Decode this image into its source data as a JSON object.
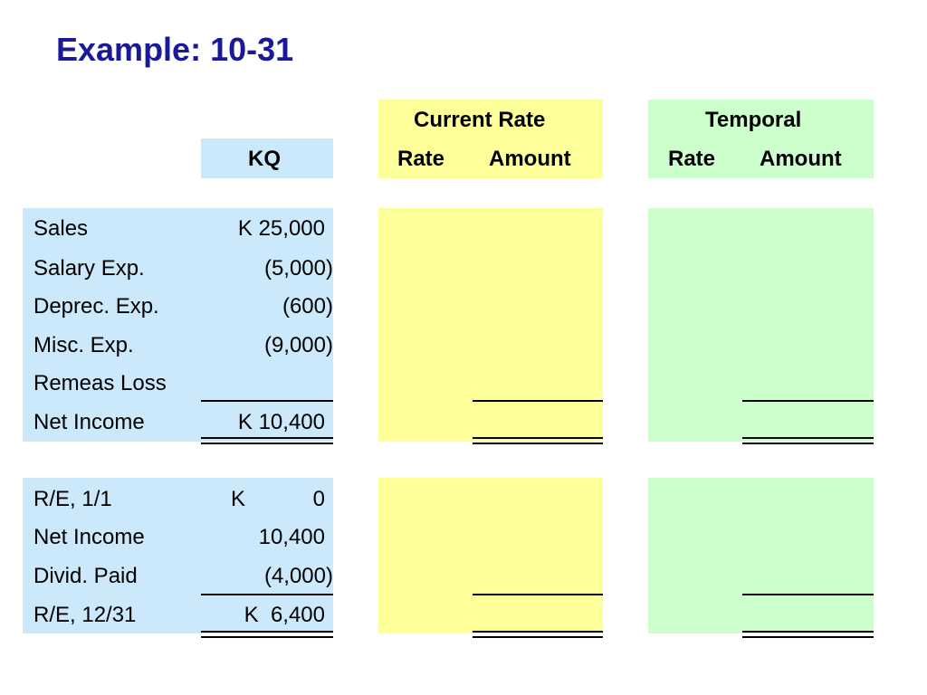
{
  "title": "Example: 10-31",
  "columns": {
    "kq": "KQ",
    "current_rate": "Current Rate",
    "temporal": "Temporal",
    "rate": "Rate",
    "amount": "Amount"
  },
  "income_statement": [
    {
      "label": "Sales",
      "kq": "K 25,000"
    },
    {
      "label": "Salary Exp.",
      "kq": "(5,000)"
    },
    {
      "label": "Deprec. Exp.",
      "kq": "(600)"
    },
    {
      "label": "Misc. Exp.",
      "kq": "(9,000)"
    },
    {
      "label": "Remeas Loss",
      "kq": ""
    },
    {
      "label": "Net Income",
      "kq": "K 10,400"
    }
  ],
  "retained_earnings": [
    {
      "label": "R/E, 1/1",
      "kq_prefix": "K",
      "kq": "0"
    },
    {
      "label": "Net Income",
      "kq": "10,400"
    },
    {
      "label": "Divid. Paid",
      "kq": "(4,000)"
    },
    {
      "label": "R/E, 12/31",
      "kq": "K  6,400"
    }
  ],
  "colors": {
    "title": "#1a1a99",
    "kq_fill": "#cce8fb",
    "current_rate_fill": "#ffff99",
    "temporal_fill": "#ccffcc"
  }
}
